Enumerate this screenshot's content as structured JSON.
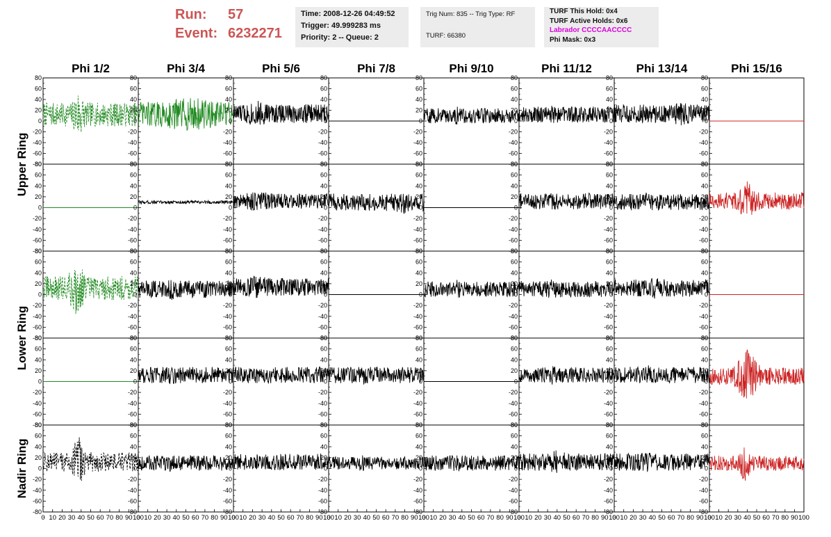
{
  "header": {
    "run_label": "Run:",
    "run_value": "57",
    "event_label": "Event:",
    "event_value": "6232271",
    "box1": [
      "Time: 2008-12-26 04:49:52",
      "Trigger: 49.999283 ms",
      "Priority: 2 -- Queue: 2"
    ],
    "box2": [
      "Trig Num: 835 -- Trig Type: RF",
      "TURF: 66380"
    ],
    "box3": [
      "TURF This Hold: 0x4",
      "TURF Active Holds: 0x6",
      "Labrador CCCCAACCCC",
      "Phi Mask: 0x3"
    ]
  },
  "chart_data": {
    "type": "line",
    "columns": [
      "Phi 1/2",
      "Phi 3/4",
      "Phi 5/6",
      "Phi 7/8",
      "Phi 9/10",
      "Phi 11/12",
      "Phi 13/14",
      "Phi 15/16"
    ],
    "ring_labels": [
      "Upper Ring",
      "Lower Ring",
      "Nadir Ring"
    ],
    "rows_per_ring": [
      2,
      2,
      1
    ],
    "xlim": [
      0,
      100
    ],
    "ylim": [
      -80,
      80
    ],
    "x_ticks": [
      "0",
      "10",
      "20",
      "30",
      "40",
      "50",
      "60",
      "70",
      "80",
      "90",
      "100"
    ],
    "y_ticks": [
      "80",
      "60",
      "40",
      "20",
      "0",
      "-20",
      "-40",
      "-60",
      "-80"
    ],
    "grid": false,
    "colors": {
      "black": "#000000",
      "green": "#228B22",
      "red": "#cc2222"
    },
    "panels": [
      [
        {
          "style": "dashed",
          "color": "green",
          "offset": 12,
          "amp": 22,
          "burst": [
            30,
            45,
            28
          ]
        },
        {
          "style": "solid",
          "color": "green",
          "offset": 12,
          "amp": 24,
          "burst": [
            30,
            80,
            10
          ]
        },
        {
          "style": "solid",
          "color": "black",
          "offset": 14,
          "amp": 18,
          "burst": [
            10,
            40,
            6
          ]
        },
        {
          "style": "flat",
          "color": "black",
          "offset": 0
        },
        {
          "style": "solid",
          "color": "black",
          "offset": 10,
          "amp": 14,
          "burst": [
            30,
            40,
            4
          ]
        },
        {
          "style": "solid",
          "color": "black",
          "offset": 12,
          "amp": 15,
          "burst": [
            30,
            40,
            4
          ]
        },
        {
          "style": "solid",
          "color": "black",
          "offset": 14,
          "amp": 17,
          "burst": [
            60,
            80,
            8
          ]
        },
        {
          "style": "flat",
          "color": "red",
          "offset": 0
        }
      ],
      [
        {
          "style": "flat",
          "color": "green",
          "offset": 0
        },
        {
          "style": "solid",
          "color": "black",
          "offset": 10,
          "amp": 3,
          "burst": [
            30,
            40,
            0
          ]
        },
        {
          "style": "solid",
          "color": "black",
          "offset": 12,
          "amp": 14,
          "burst": [
            10,
            40,
            6
          ]
        },
        {
          "style": "solid",
          "color": "black",
          "offset": 10,
          "amp": 16,
          "burst": [
            70,
            85,
            8
          ]
        },
        {
          "style": "flat",
          "color": "black",
          "offset": 0
        },
        {
          "style": "solid",
          "color": "black",
          "offset": 12,
          "amp": 15,
          "burst": [
            30,
            40,
            4
          ]
        },
        {
          "style": "solid",
          "color": "black",
          "offset": 10,
          "amp": 15,
          "burst": [
            30,
            40,
            4
          ]
        },
        {
          "style": "solid",
          "color": "red",
          "offset": 12,
          "amp": 16,
          "burst": [
            30,
            50,
            28
          ]
        }
      ],
      [
        {
          "style": "dashed",
          "color": "green",
          "offset": 12,
          "amp": 22,
          "burst": [
            25,
            45,
            32
          ]
        },
        {
          "style": "solid",
          "color": "black",
          "offset": 10,
          "amp": 16,
          "burst": [
            30,
            40,
            4
          ]
        },
        {
          "style": "solid",
          "color": "black",
          "offset": 14,
          "amp": 16,
          "burst": [
            10,
            40,
            6
          ]
        },
        {
          "style": "flat",
          "color": "black",
          "offset": 0
        },
        {
          "style": "solid",
          "color": "black",
          "offset": 10,
          "amp": 14,
          "burst": [
            30,
            40,
            4
          ]
        },
        {
          "style": "solid",
          "color": "black",
          "offset": 10,
          "amp": 15,
          "burst": [
            30,
            40,
            4
          ]
        },
        {
          "style": "solid",
          "color": "black",
          "offset": 12,
          "amp": 16,
          "burst": [
            30,
            60,
            6
          ]
        },
        {
          "style": "flat",
          "color": "red",
          "offset": 0
        }
      ],
      [
        {
          "style": "flat",
          "color": "green",
          "offset": 0
        },
        {
          "style": "solid",
          "color": "black",
          "offset": 12,
          "amp": 15,
          "burst": [
            30,
            40,
            4
          ]
        },
        {
          "style": "solid",
          "color": "black",
          "offset": 12,
          "amp": 15,
          "burst": [
            30,
            40,
            4
          ]
        },
        {
          "style": "solid",
          "color": "black",
          "offset": 12,
          "amp": 15,
          "burst": [
            30,
            40,
            4
          ]
        },
        {
          "style": "flat",
          "color": "black",
          "offset": 0
        },
        {
          "style": "solid",
          "color": "black",
          "offset": 12,
          "amp": 14,
          "burst": [
            30,
            40,
            4
          ]
        },
        {
          "style": "solid",
          "color": "black",
          "offset": 12,
          "amp": 15,
          "burst": [
            30,
            40,
            4
          ]
        },
        {
          "style": "solid",
          "color": "red",
          "offset": 10,
          "amp": 16,
          "burst": [
            25,
            55,
            34
          ]
        }
      ],
      [
        {
          "style": "dashed",
          "color": "black",
          "offset": 12,
          "amp": 18,
          "burst": [
            30,
            45,
            38
          ]
        },
        {
          "style": "solid",
          "color": "black",
          "offset": 10,
          "amp": 14,
          "burst": [
            30,
            40,
            4
          ]
        },
        {
          "style": "solid",
          "color": "black",
          "offset": 12,
          "amp": 15,
          "burst": [
            30,
            40,
            4
          ]
        },
        {
          "style": "solid",
          "color": "black",
          "offset": 10,
          "amp": 12,
          "burst": [
            30,
            40,
            4
          ]
        },
        {
          "style": "solid",
          "color": "black",
          "offset": 10,
          "amp": 14,
          "burst": [
            30,
            40,
            4
          ]
        },
        {
          "style": "solid",
          "color": "black",
          "offset": 12,
          "amp": 16,
          "burst": [
            30,
            50,
            6
          ]
        },
        {
          "style": "solid",
          "color": "black",
          "offset": 12,
          "amp": 16,
          "burst": [
            30,
            40,
            4
          ]
        },
        {
          "style": "solid",
          "color": "red",
          "offset": 10,
          "amp": 14,
          "burst": [
            30,
            45,
            24
          ]
        }
      ]
    ]
  }
}
